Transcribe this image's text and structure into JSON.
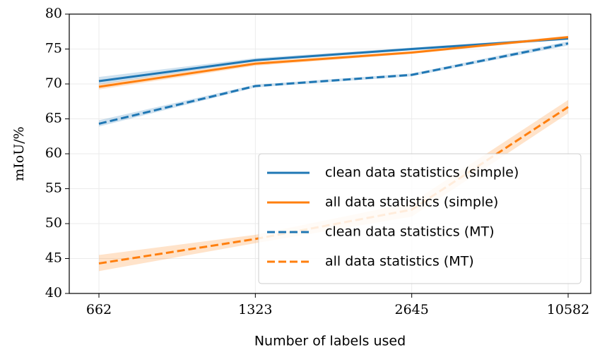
{
  "chart_data": {
    "type": "line",
    "x_label": "Number of labels used",
    "y_label": "mIoU/%",
    "categories": [
      "662",
      "1323",
      "2645",
      "10582"
    ],
    "ylim": [
      40,
      80
    ],
    "yticks": [
      40,
      45,
      50,
      55,
      60,
      65,
      70,
      75,
      80
    ],
    "grid": true,
    "legend": "lower right",
    "series": [
      {
        "name": "clean data statistics (simple)",
        "color": "#1f77b4",
        "linestyle": "solid",
        "values": [
          70.4,
          73.4,
          75.0,
          76.5
        ],
        "lower": [
          69.9,
          73.2,
          74.8,
          76.3
        ],
        "upper": [
          71.0,
          73.7,
          75.2,
          76.7
        ]
      },
      {
        "name": "all data statistics (simple)",
        "color": "#ff7f0e",
        "linestyle": "solid",
        "values": [
          69.6,
          72.9,
          74.5,
          76.7
        ],
        "lower": [
          69.2,
          72.6,
          74.3,
          76.5
        ],
        "upper": [
          70.0,
          73.2,
          74.7,
          76.9
        ]
      },
      {
        "name": "clean data statistics (MT)",
        "color": "#1f77b4",
        "linestyle": "dashed",
        "values": [
          64.3,
          69.7,
          71.3,
          75.8
        ],
        "lower": [
          63.9,
          69.5,
          71.1,
          75.5
        ],
        "upper": [
          64.8,
          69.9,
          71.5,
          76.1
        ]
      },
      {
        "name": "all data statistics (MT)",
        "color": "#ff7f0e",
        "linestyle": "dashed",
        "values": [
          44.3,
          47.8,
          52.0,
          66.7
        ],
        "lower": [
          43.2,
          47.2,
          51.0,
          65.8
        ],
        "upper": [
          45.5,
          48.4,
          53.0,
          67.7
        ]
      }
    ]
  }
}
